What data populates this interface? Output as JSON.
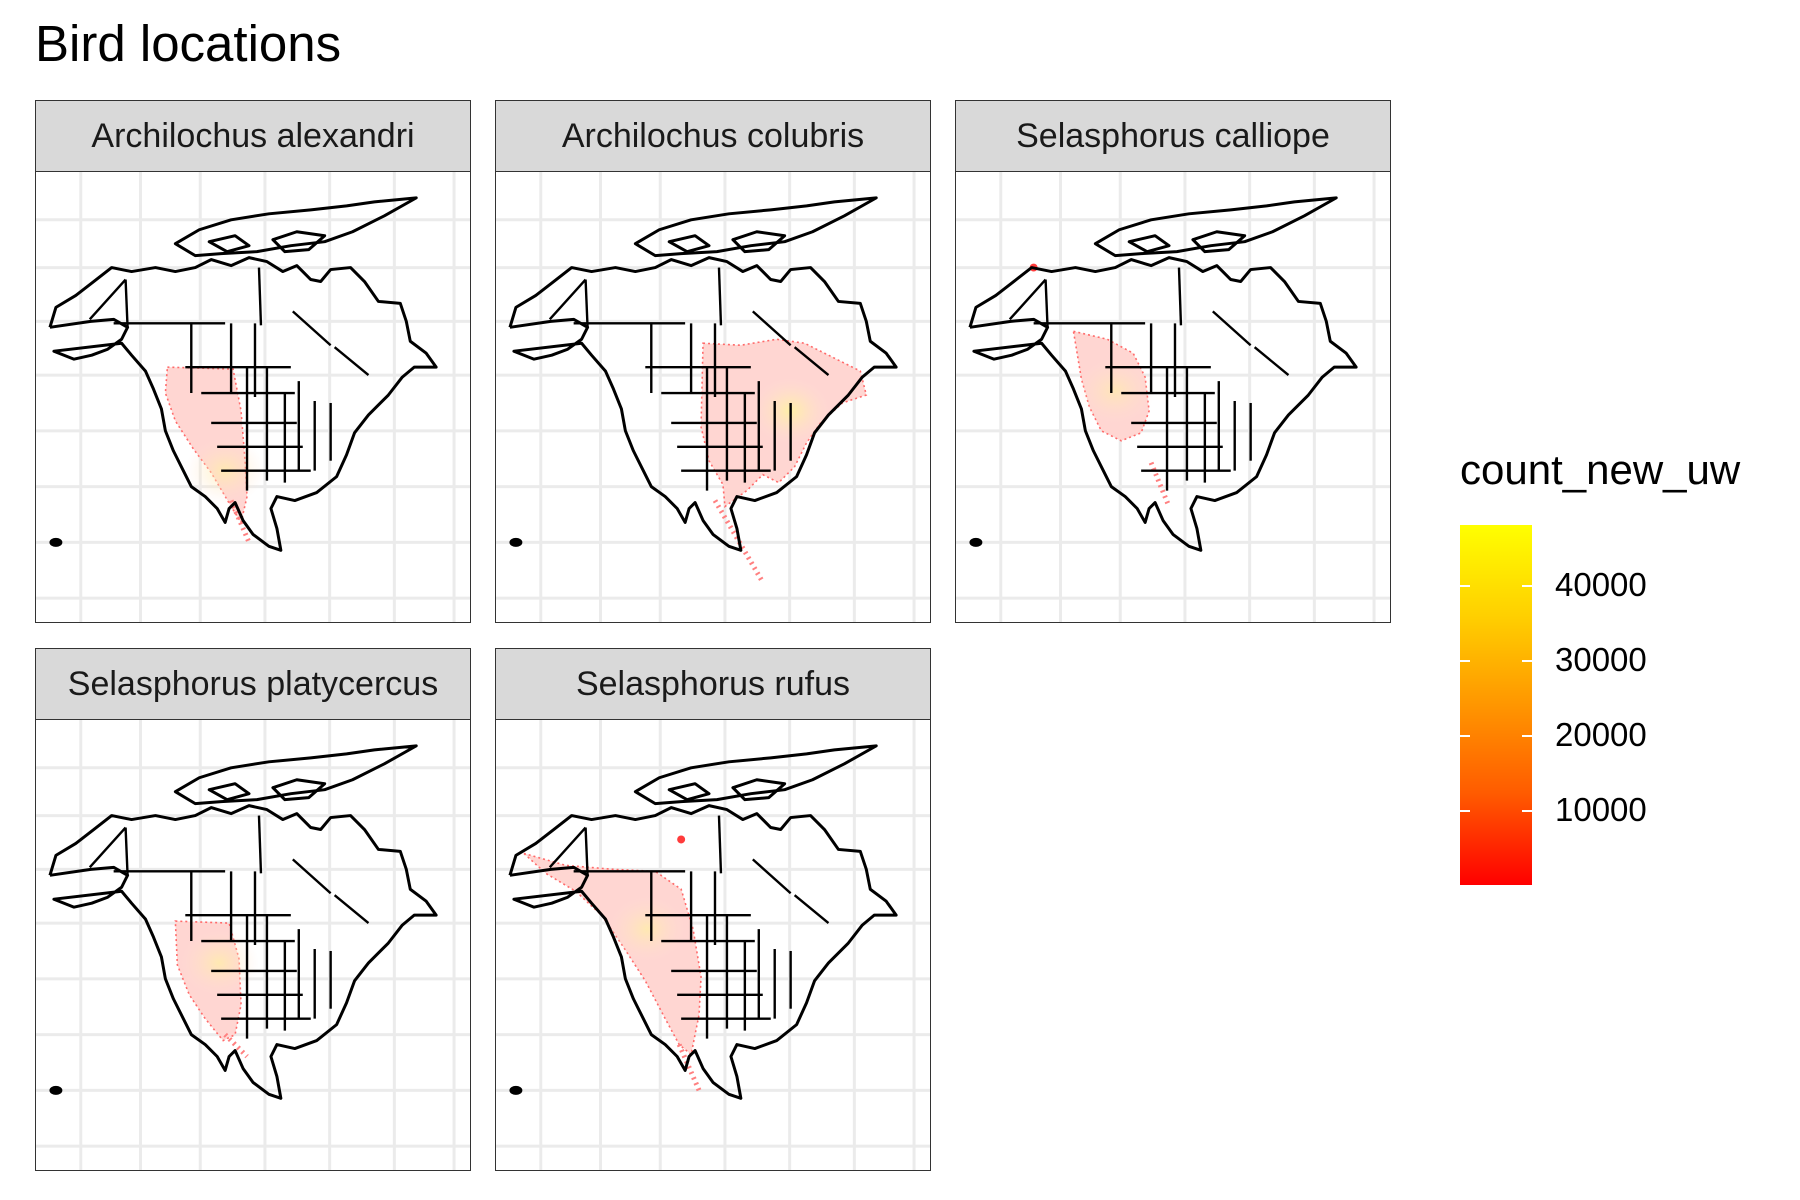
{
  "chart_data": {
    "type": "map",
    "title": "Bird locations",
    "facets": [
      {
        "label": "Archilochus alexandri",
        "row": 0,
        "col": 0,
        "peak": 0.3
      },
      {
        "label": "Archilochus colubris",
        "row": 0,
        "col": 1,
        "peak": 0.55
      },
      {
        "label": "Selasphorus calliope",
        "row": 0,
        "col": 2,
        "peak": 0.2
      },
      {
        "label": "Selasphorus platycercus",
        "row": 1,
        "col": 0,
        "peak": 0.3
      },
      {
        "label": "Selasphorus rufus",
        "row": 1,
        "col": 1,
        "peak": 0.3
      }
    ],
    "legend": {
      "title": "count_new_uw",
      "breaks": [
        10000,
        20000,
        30000,
        40000
      ],
      "break_labels": [
        "10000",
        "20000",
        "30000",
        "40000"
      ],
      "range": [
        0,
        48000
      ],
      "colors": {
        "low": "#ff0000",
        "high": "#ffff00"
      }
    },
    "grid": true,
    "theme": "light"
  }
}
